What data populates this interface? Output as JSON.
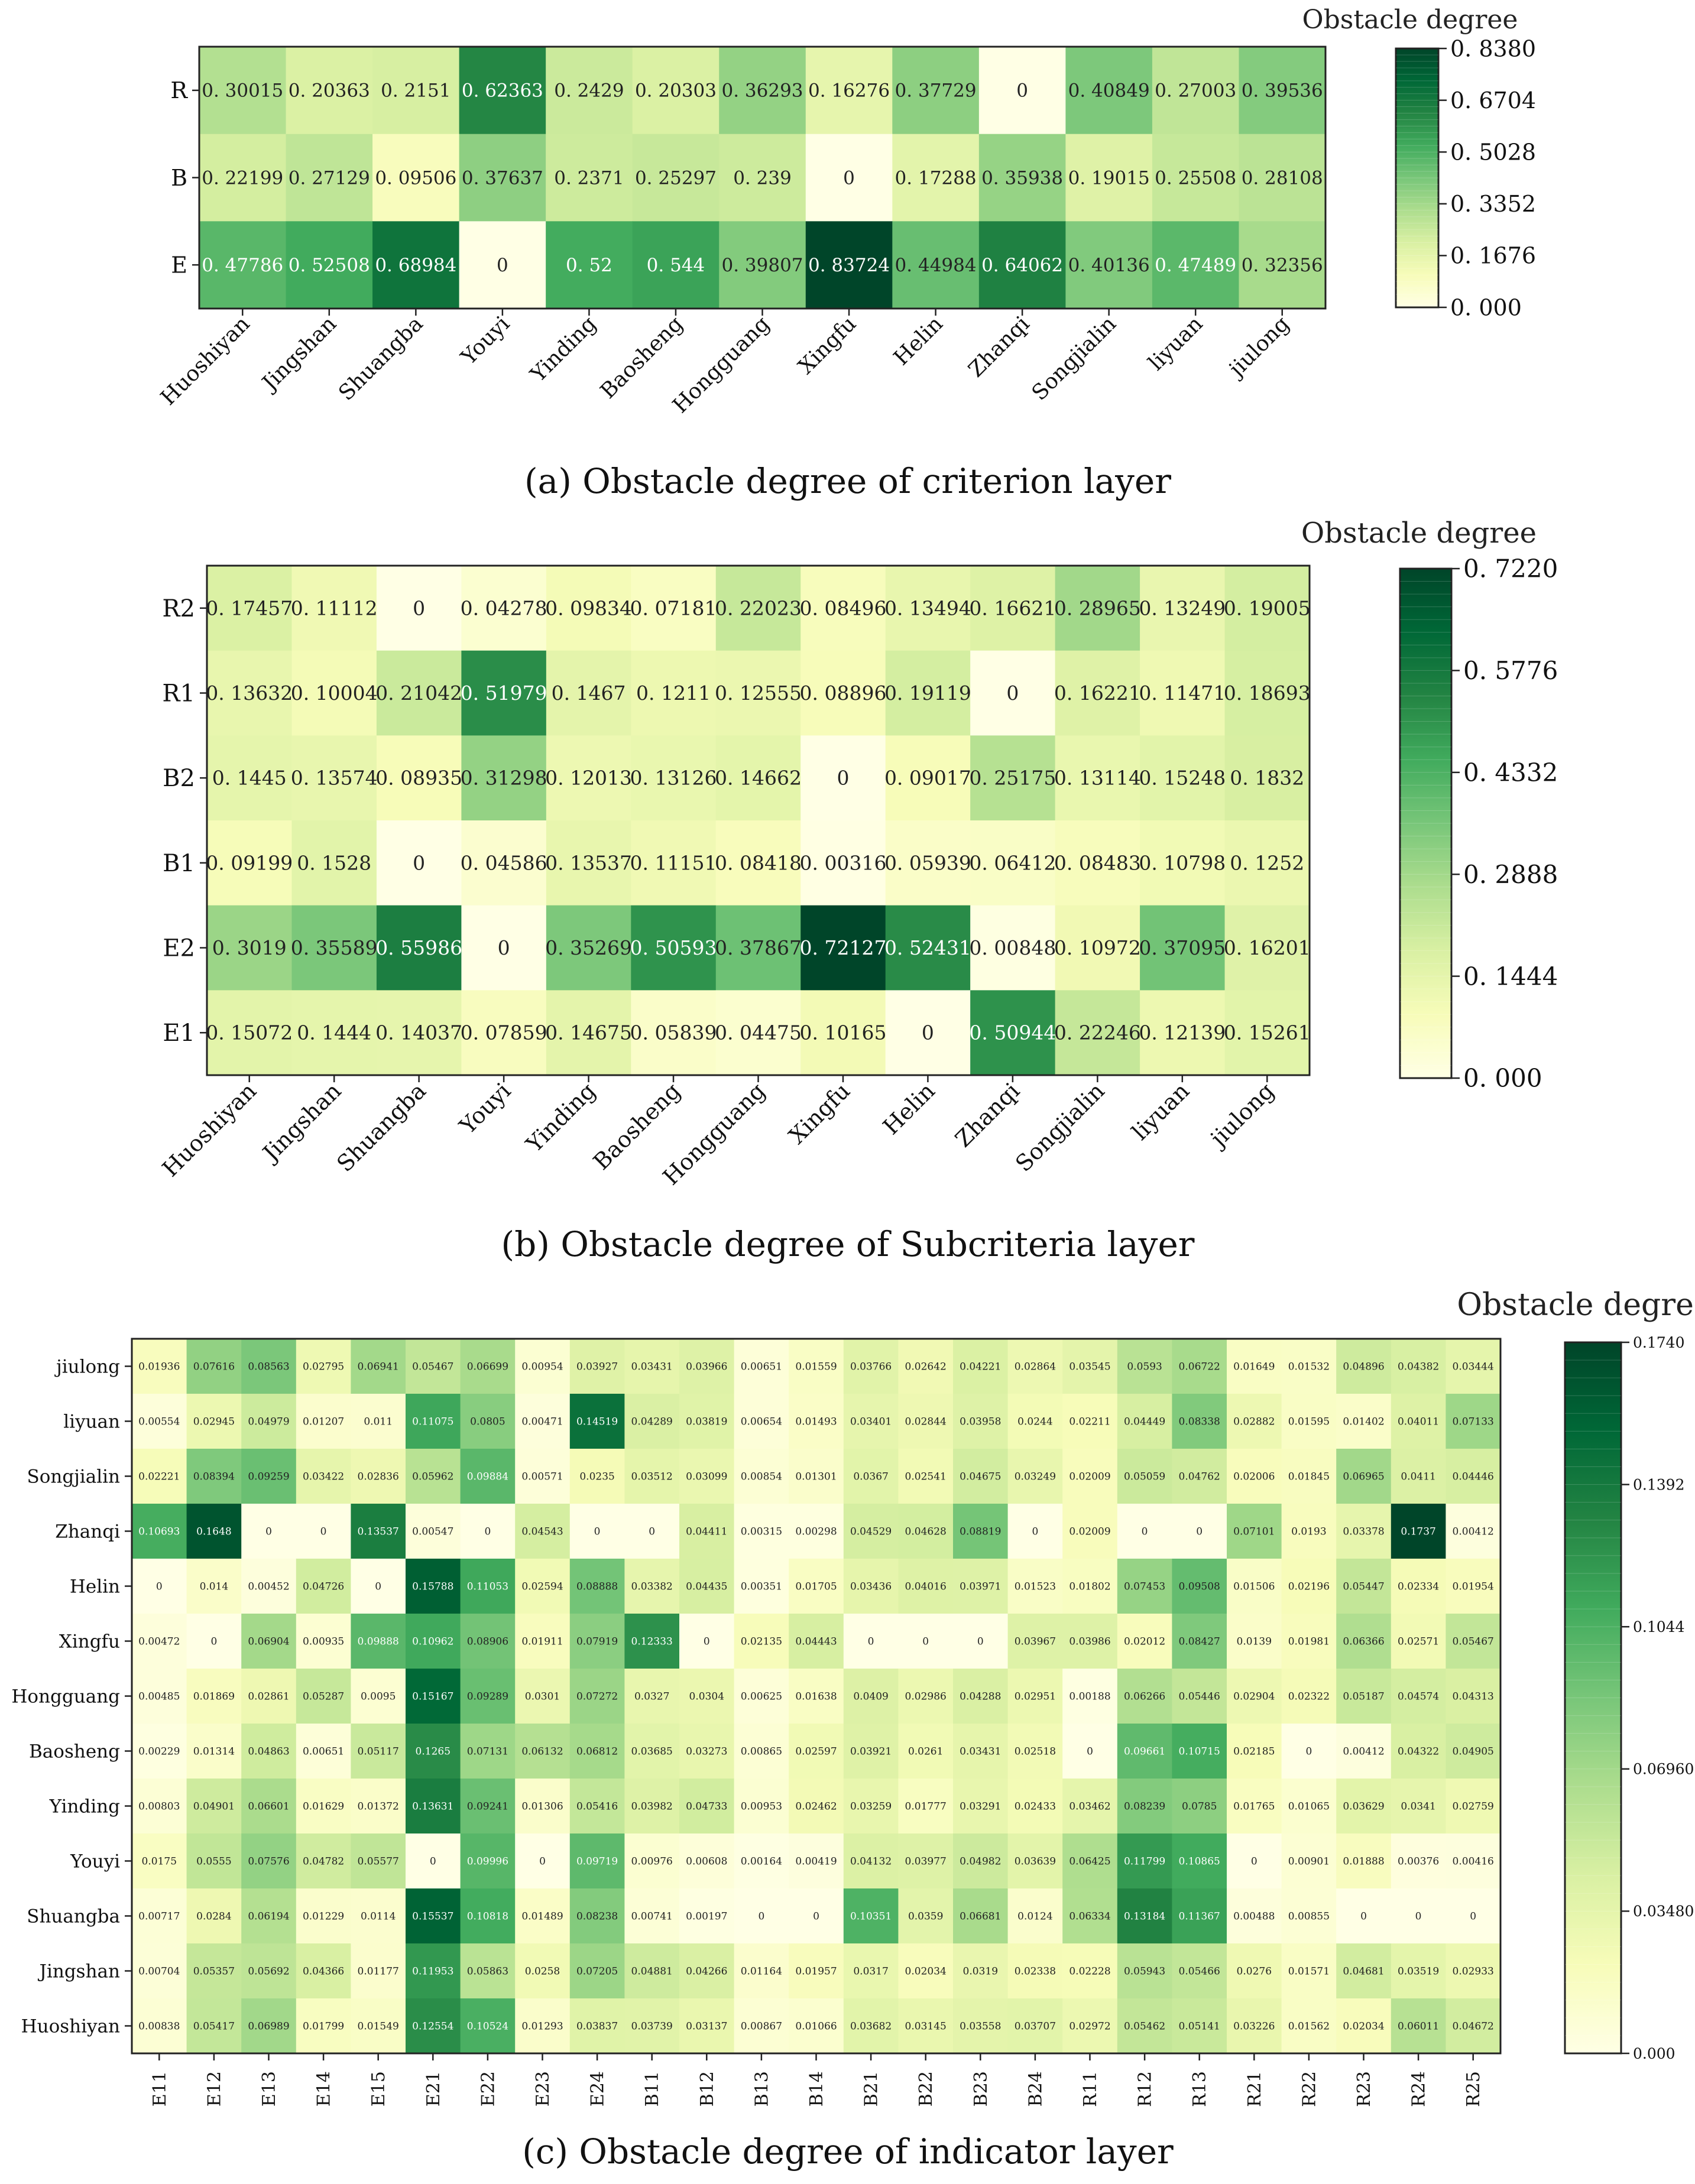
{
  "captions": {
    "a": "(a) Obstacle degree of criterion layer",
    "b": "(b) Obstacle degree of Subcriteria layer",
    "c": "(c) Obstacle degree of indicator layer"
  },
  "colorbar_title": "Obstacle degree",
  "colors": {
    "scale": [
      "#ffffe5",
      "#f7fcb9",
      "#d9f0a3",
      "#addd8e",
      "#78c679",
      "#41ab5d",
      "#238443",
      "#006837",
      "#004529"
    ],
    "text_dark": "#222222",
    "text_light": "#ffffff"
  },
  "chart_data": [
    {
      "type": "heatmap",
      "title": "Obstacle degree",
      "columns": [
        "Huoshiyan",
        "Jingshan",
        "Shuangba",
        "Youyi",
        "Yinding",
        "Baosheng",
        "Hongguang",
        "Xingfu",
        "Helin",
        "Zhanqi",
        "Songjialin",
        "liyuan",
        "jiulong"
      ],
      "rows": [
        "R",
        "B",
        "E"
      ],
      "values": [
        [
          "0. 30015",
          "0. 20363",
          "0. 2151",
          "0. 62363",
          "0. 2429",
          "0. 20303",
          "0. 36293",
          "0. 16276",
          "0. 37729",
          "0",
          "0. 40849",
          "0. 27003",
          "0. 39536"
        ],
        [
          "0. 22199",
          "0. 27129",
          "0. 09506",
          "0. 37637",
          "0. 2371",
          "0. 25297",
          "0. 239",
          "0",
          "0. 17288",
          "0. 35938",
          "0. 19015",
          "0. 25508",
          "0. 28108"
        ],
        [
          "0. 47786",
          "0. 52508",
          "0. 68984",
          "0",
          "0. 52",
          "0. 544",
          "0. 39807",
          "0. 83724",
          "0. 44984",
          "0. 64062",
          "0. 40136",
          "0. 47489",
          "0. 32356"
        ]
      ],
      "vmin": 0,
      "vmax": 0.838,
      "colorbar_ticks": [
        "0. 8380",
        "0. 6704",
        "0. 5028",
        "0. 3352",
        "0. 1676",
        "0. 000"
      ]
    },
    {
      "type": "heatmap",
      "title": "Obstacle degree",
      "columns": [
        "Huoshiyan",
        "Jingshan",
        "Shuangba",
        "Youyi",
        "Yinding",
        "Baosheng",
        "Hongguang",
        "Xingfu",
        "Helin",
        "Zhanqi",
        "Songjialin",
        "liyuan",
        "jiulong"
      ],
      "rows": [
        "R2",
        "R1",
        "B2",
        "B1",
        "E2",
        "E1"
      ],
      "values": [
        [
          "0. 17457",
          "0. 11112",
          "0",
          "0. 04278",
          "0. 09834",
          "0. 07181",
          "0. 22023",
          "0. 08496",
          "0. 13494",
          "0. 16621",
          "0. 28965",
          "0. 13249",
          "0. 19005"
        ],
        [
          "0. 13632",
          "0. 10004",
          "0. 21042",
          "0. 51979",
          "0. 1467",
          "0. 1211",
          "0. 12555",
          "0. 08896",
          "0. 19119",
          "0",
          "0. 16221",
          "0. 11471",
          "0. 18693"
        ],
        [
          "0. 1445",
          "0. 13574",
          "0. 08935",
          "0. 31298",
          "0. 12013",
          "0. 13126",
          "0. 14662",
          "0",
          "0. 09017",
          "0. 25175",
          "0. 13114",
          "0. 15248",
          "0. 1832"
        ],
        [
          "0. 09199",
          "0. 1528",
          "0",
          "0. 04586",
          "0. 13537",
          "0. 11151",
          "0. 08418",
          "0. 00316",
          "0. 05939",
          "0. 06412",
          "0. 08483",
          "0. 10798",
          "0. 1252"
        ],
        [
          "0. 3019",
          "0. 35589",
          "0. 55986",
          "0",
          "0. 35269",
          "0. 50593",
          "0. 37867",
          "0. 72127",
          "0. 52431",
          "0. 00848",
          "0. 10972",
          "0. 37095",
          "0. 16201"
        ],
        [
          "0. 15072",
          "0. 1444",
          "0. 14037",
          "0. 07859",
          "0. 14675",
          "0. 05839",
          "0. 04475",
          "0. 10165",
          "0",
          "0. 50944",
          "0. 22246",
          "0. 12139",
          "0. 15261"
        ]
      ],
      "vmin": 0,
      "vmax": 0.722,
      "colorbar_ticks": [
        "0. 7220",
        "0. 5776",
        "0. 4332",
        "0. 2888",
        "0. 1444",
        "0. 000"
      ]
    },
    {
      "type": "heatmap",
      "title": "Obstacle degree",
      "columns": [
        "E11",
        "E12",
        "E13",
        "E14",
        "E15",
        "E21",
        "E22",
        "E23",
        "E24",
        "B11",
        "B12",
        "B13",
        "B14",
        "B21",
        "B22",
        "B23",
        "B24",
        "R11",
        "R12",
        "R13",
        "R21",
        "R22",
        "R23",
        "R24",
        "R25"
      ],
      "rows": [
        "jiulong",
        "liyuan",
        "Songjialin",
        "Zhanqi",
        "Helin",
        "Xingfu",
        "Hongguang",
        "Baosheng",
        "Yinding",
        "Youyi",
        "Shuangba",
        "Jingshan",
        "Huoshiyan"
      ],
      "values": [
        [
          "0.01936",
          "0.07616",
          "0.08563",
          "0.02795",
          "0.06941",
          "0.05467",
          "0.06699",
          "0.00954",
          "0.03927",
          "0.03431",
          "0.03966",
          "0.00651",
          "0.01559",
          "0.03766",
          "0.02642",
          "0.04221",
          "0.02864",
          "0.03545",
          "0.0593",
          "0.06722",
          "0.01649",
          "0.01532",
          "0.04896",
          "0.04382",
          "0.03444"
        ],
        [
          "0.00554",
          "0.02945",
          "0.04979",
          "0.01207",
          "0.011",
          "0.11075",
          "0.0805",
          "0.00471",
          "0.14519",
          "0.04289",
          "0.03819",
          "0.00654",
          "0.01493",
          "0.03401",
          "0.02844",
          "0.03958",
          "0.0244",
          "0.02211",
          "0.04449",
          "0.08338",
          "0.02882",
          "0.01595",
          "0.01402",
          "0.04011",
          "0.07133"
        ],
        [
          "0.02221",
          "0.08394",
          "0.09259",
          "0.03422",
          "0.02836",
          "0.05962",
          "0.09884",
          "0.00571",
          "0.0235",
          "0.03512",
          "0.03099",
          "0.00854",
          "0.01301",
          "0.0367",
          "0.02541",
          "0.04675",
          "0.03249",
          "0.02009",
          "0.05059",
          "0.04762",
          "0.02006",
          "0.01845",
          "0.06965",
          "0.0411",
          "0.04446"
        ],
        [
          "0.10693",
          "0.1648",
          "0",
          "0",
          "0.13537",
          "0.00547",
          "0",
          "0.04543",
          "0",
          "0",
          "0.04411",
          "0.00315",
          "0.00298",
          "0.04529",
          "0.04628",
          "0.08819",
          "0",
          "0.02009",
          "0",
          "0",
          "0.07101",
          "0.0193",
          "0.03378",
          "0.1737",
          "0.00412"
        ],
        [
          "0",
          "0.014",
          "0.00452",
          "0.04726",
          "0",
          "0.15788",
          "0.11053",
          "0.02594",
          "0.08888",
          "0.03382",
          "0.04435",
          "0.00351",
          "0.01705",
          "0.03436",
          "0.04016",
          "0.03971",
          "0.01523",
          "0.01802",
          "0.07453",
          "0.09508",
          "0.01506",
          "0.02196",
          "0.05447",
          "0.02334",
          "0.01954"
        ],
        [
          "0.00472",
          "0",
          "0.06904",
          "0.00935",
          "0.09888",
          "0.10962",
          "0.08906",
          "0.01911",
          "0.07919",
          "0.12333",
          "0",
          "0.02135",
          "0.04443",
          "0",
          "0",
          "0",
          "0.03967",
          "0.03986",
          "0.02012",
          "0.08427",
          "0.0139",
          "0.01981",
          "0.06366",
          "0.02571",
          "0.05467"
        ],
        [
          "0.00485",
          "0.01869",
          "0.02861",
          "0.05287",
          "0.0095",
          "0.15167",
          "0.09289",
          "0.0301",
          "0.07272",
          "0.0327",
          "0.0304",
          "0.00625",
          "0.01638",
          "0.0409",
          "0.02986",
          "0.04288",
          "0.02951",
          "0.00188",
          "0.06266",
          "0.05446",
          "0.02904",
          "0.02322",
          "0.05187",
          "0.04574",
          "0.04313"
        ],
        [
          "0.00229",
          "0.01314",
          "0.04863",
          "0.00651",
          "0.05117",
          "0.1265",
          "0.07131",
          "0.06132",
          "0.06812",
          "0.03685",
          "0.03273",
          "0.00865",
          "0.02597",
          "0.03921",
          "0.0261",
          "0.03431",
          "0.02518",
          "0",
          "0.09661",
          "0.10715",
          "0.02185",
          "0",
          "0.00412",
          "0.04322",
          "0.04905"
        ],
        [
          "0.00803",
          "0.04901",
          "0.06601",
          "0.01629",
          "0.01372",
          "0.13631",
          "0.09241",
          "0.01306",
          "0.05416",
          "0.03982",
          "0.04733",
          "0.00953",
          "0.02462",
          "0.03259",
          "0.01777",
          "0.03291",
          "0.02433",
          "0.03462",
          "0.08239",
          "0.0785",
          "0.01765",
          "0.01065",
          "0.03629",
          "0.0341",
          "0.02759"
        ],
        [
          "0.0175",
          "0.0555",
          "0.07576",
          "0.04782",
          "0.05577",
          "0",
          "0.09996",
          "0",
          "0.09719",
          "0.00976",
          "0.00608",
          "0.00164",
          "0.00419",
          "0.04132",
          "0.03977",
          "0.04982",
          "0.03639",
          "0.06425",
          "0.11799",
          "0.10865",
          "0",
          "0.00901",
          "0.01888",
          "0.00376",
          "0.00416"
        ],
        [
          "0.00717",
          "0.0284",
          "0.06194",
          "0.01229",
          "0.0114",
          "0.15537",
          "0.10818",
          "0.01489",
          "0.08238",
          "0.00741",
          "0.00197",
          "0",
          "0",
          "0.10351",
          "0.0359",
          "0.06681",
          "0.0124",
          "0.06334",
          "0.13184",
          "0.11367",
          "0.00488",
          "0.00855",
          "0",
          "0",
          "0"
        ],
        [
          "0.00704",
          "0.05357",
          "0.05692",
          "0.04366",
          "0.01177",
          "0.11953",
          "0.05863",
          "0.0258",
          "0.07205",
          "0.04881",
          "0.04266",
          "0.01164",
          "0.01957",
          "0.0317",
          "0.02034",
          "0.0319",
          "0.02338",
          "0.02228",
          "0.05943",
          "0.05466",
          "0.0276",
          "0.01571",
          "0.04681",
          "0.03519",
          "0.02933"
        ],
        [
          "0.00838",
          "0.05417",
          "0.06989",
          "0.01799",
          "0.01549",
          "0.12554",
          "0.10524",
          "0.01293",
          "0.03837",
          "0.03739",
          "0.03137",
          "0.00867",
          "0.01066",
          "0.03682",
          "0.03145",
          "0.03558",
          "0.03707",
          "0.02972",
          "0.05462",
          "0.05141",
          "0.03226",
          "0.01562",
          "0.02034",
          "0.06011",
          "0.04672"
        ]
      ],
      "vmin": 0,
      "vmax": 0.174,
      "colorbar_ticks": [
        "0.1740",
        "0.1392",
        "0.1044",
        "0.06960",
        "0.03480",
        "0.000"
      ]
    }
  ]
}
